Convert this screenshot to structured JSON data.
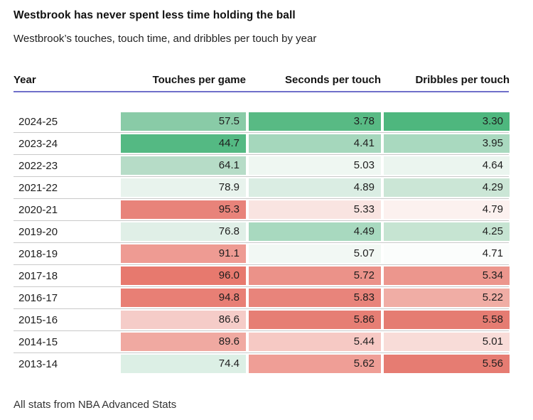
{
  "title": "Westbrook has never spent less time holding the ball",
  "subtitle": "Westbrook’s touches, touch time, and dribbles per touch by year",
  "footer": "All stats from NBA Advanced Stats",
  "accent_colors": {
    "header_underline": "#6f6fca",
    "row_separator": "#c9c9c9",
    "heatmap_low_green": "#4eb77e",
    "heatmap_mid_white": "#ffffff",
    "heatmap_high_red": "#e7796e"
  },
  "chart_data": {
    "type": "heatmap",
    "title": "Westbrook has never spent less time holding the ball",
    "subtitle": "Westbrook’s touches, touch time, and dribbles per touch by year",
    "source_note": "All stats from NBA Advanced Stats",
    "columns": [
      "Year",
      "Touches per game",
      "Seconds per touch",
      "Dribbles per touch"
    ],
    "legend": "none",
    "color_encoding": "green = low value, red = high value, per column",
    "rows": [
      {
        "year": "2024-25",
        "values": [
          "57.5",
          "3.78",
          "3.30"
        ],
        "colors": [
          "#89cba7",
          "#58ba84",
          "#4eb77e"
        ]
      },
      {
        "year": "2023-24",
        "values": [
          "44.7",
          "4.41",
          "3.95"
        ],
        "colors": [
          "#54b983",
          "#a5d7bc",
          "#a9d9bf"
        ]
      },
      {
        "year": "2022-23",
        "values": [
          "64.1",
          "5.03",
          "4.64"
        ],
        "colors": [
          "#b6dcc7",
          "#eff7f2",
          "#ebf5ef"
        ]
      },
      {
        "year": "2021-22",
        "values": [
          "78.9",
          "4.89",
          "4.29"
        ],
        "colors": [
          "#e8f3ed",
          "#daede3",
          "#cbe6d6"
        ]
      },
      {
        "year": "2020-21",
        "values": [
          "95.3",
          "5.33",
          "4.79"
        ],
        "colors": [
          "#e8837a",
          "#f9e4e1",
          "#fcf1ef"
        ]
      },
      {
        "year": "2019-20",
        "values": [
          "76.8",
          "4.49",
          "4.25"
        ],
        "colors": [
          "#e0efe7",
          "#a8d9bf",
          "#c6e4d2"
        ]
      },
      {
        "year": "2018-19",
        "values": [
          "91.1",
          "5.07",
          "4.71"
        ],
        "colors": [
          "#ee9b93",
          "#f2f8f4",
          "#fbfdfc"
        ]
      },
      {
        "year": "2017-18",
        "values": [
          "96.0",
          "5.72",
          "5.34"
        ],
        "colors": [
          "#e7796e",
          "#eb9289",
          "#ec968d"
        ]
      },
      {
        "year": "2016-17",
        "values": [
          "94.8",
          "5.83",
          "5.22"
        ],
        "colors": [
          "#e87f75",
          "#e8847b",
          "#f0ada5"
        ]
      },
      {
        "year": "2015-16",
        "values": [
          "86.6",
          "5.86",
          "5.58"
        ],
        "colors": [
          "#f5ccc8",
          "#e67e74",
          "#e57c72"
        ]
      },
      {
        "year": "2014-15",
        "values": [
          "89.6",
          "5.44",
          "5.01"
        ],
        "colors": [
          "#f0a9a1",
          "#f6c9c4",
          "#f8dcd8"
        ]
      },
      {
        "year": "2013-14",
        "values": [
          "74.4",
          "5.62",
          "5.56"
        ],
        "colors": [
          "#dcefe5",
          "#ef9e96",
          "#e67c72"
        ]
      }
    ]
  }
}
